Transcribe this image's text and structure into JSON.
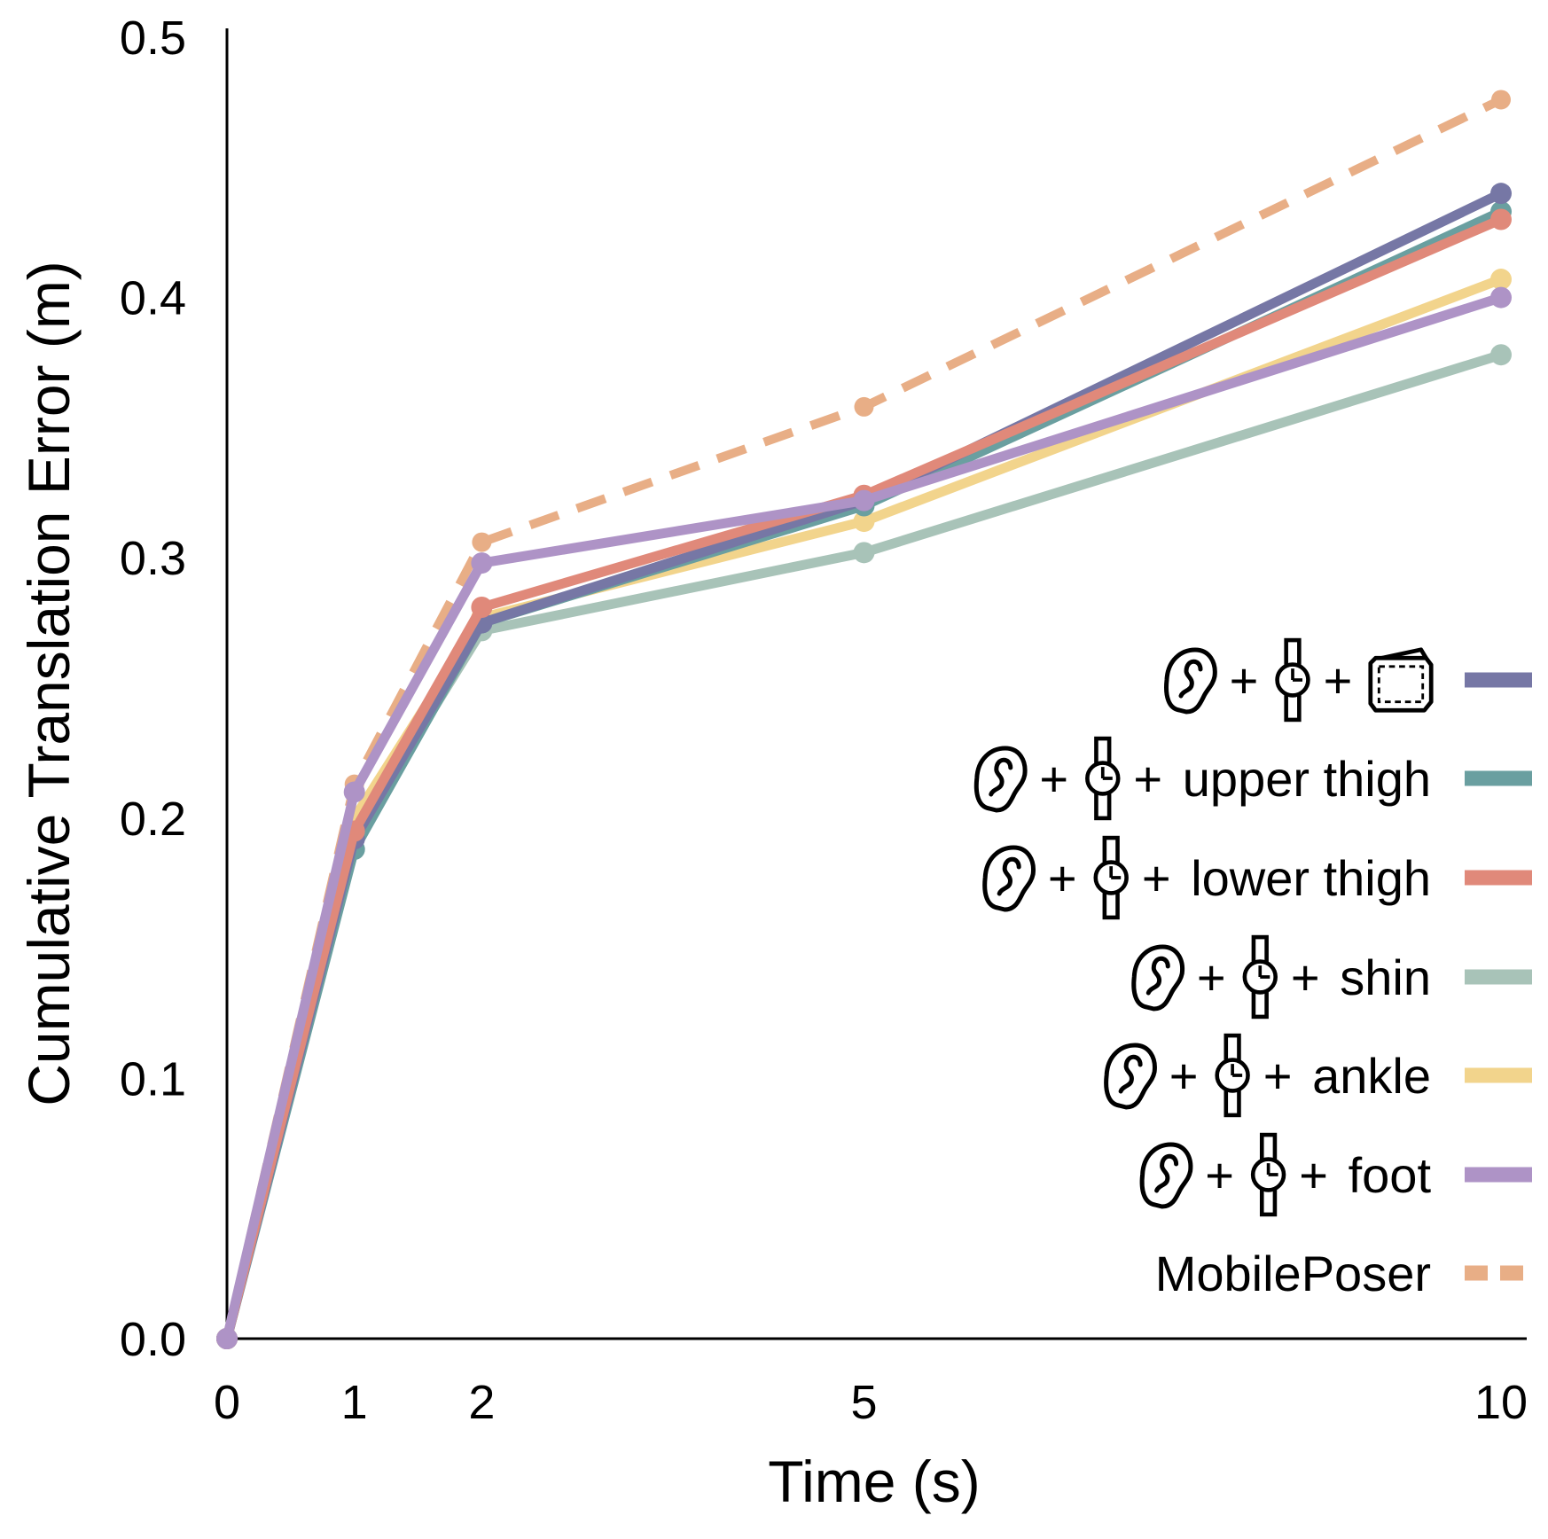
{
  "chart_data": {
    "type": "line",
    "title": "",
    "xlabel": "Time (s)",
    "ylabel": "Cumulative Translation Error (m)",
    "xlim": [
      0,
      10
    ],
    "ylim": [
      0,
      0.5
    ],
    "x": [
      0,
      1,
      2,
      5,
      10
    ],
    "xticks": [
      0,
      1,
      2,
      5,
      10
    ],
    "xtick_labels": [
      "0",
      "1",
      "2",
      "5",
      "10"
    ],
    "yticks": [
      0,
      0.1,
      0.2,
      0.3,
      0.4,
      0.5
    ],
    "ytick_labels": [
      "0.0",
      "0.1",
      "0.2",
      "0.3",
      "0.4",
      "0.5"
    ],
    "grid": false,
    "legend_position": "bottom-right",
    "series": [
      {
        "id": "wallet",
        "name": "",
        "icons": [
          "ear-icon",
          "watch-icon",
          "wallet-icon"
        ],
        "style": "solid",
        "color": "#7677a5",
        "values": [
          0.0,
          0.192,
          0.275,
          0.322,
          0.44
        ]
      },
      {
        "id": "upper-thigh",
        "name": "upper thigh",
        "icons": [
          "ear-icon",
          "watch-icon"
        ],
        "style": "solid",
        "color": "#6a9fa0",
        "values": [
          0.0,
          0.188,
          0.275,
          0.32,
          0.433
        ]
      },
      {
        "id": "lower-thigh",
        "name": "lower thigh",
        "icons": [
          "ear-icon",
          "watch-icon"
        ],
        "style": "solid",
        "color": "#e0897a",
        "values": [
          0.0,
          0.195,
          0.281,
          0.324,
          0.43
        ]
      },
      {
        "id": "shin",
        "name": "shin",
        "icons": [
          "ear-icon",
          "watch-icon"
        ],
        "style": "solid",
        "color": "#a8c3b8",
        "values": [
          0.0,
          0.193,
          0.272,
          0.302,
          0.378
        ]
      },
      {
        "id": "ankle",
        "name": "ankle",
        "icons": [
          "ear-icon",
          "watch-icon"
        ],
        "style": "solid",
        "color": "#f2d48c",
        "values": [
          0.0,
          0.2,
          0.277,
          0.314,
          0.407
        ]
      },
      {
        "id": "foot",
        "name": "foot",
        "icons": [
          "ear-icon",
          "watch-icon"
        ],
        "style": "solid",
        "color": "#ae93c6",
        "values": [
          0.0,
          0.21,
          0.298,
          0.322,
          0.4
        ]
      },
      {
        "id": "mobileposer",
        "name": "MobilePoser",
        "icons": [],
        "style": "dashed",
        "color": "#e8ae86",
        "values": [
          0.0,
          0.213,
          0.306,
          0.358,
          0.476
        ]
      }
    ]
  }
}
